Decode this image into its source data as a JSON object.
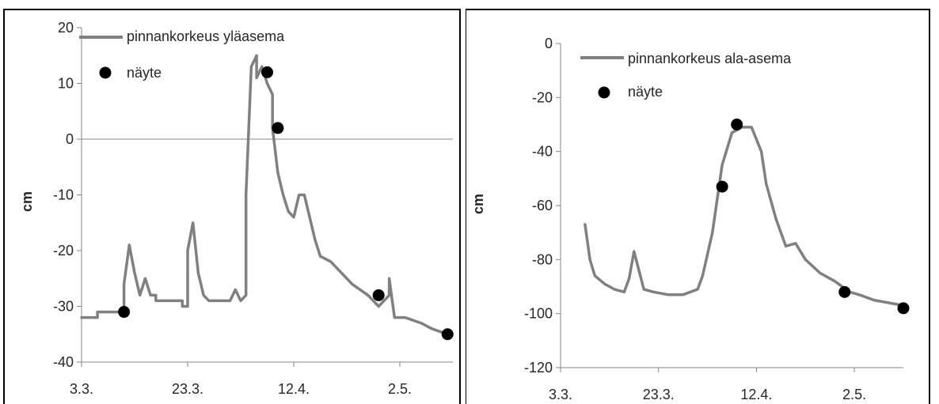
{
  "chart_data": [
    {
      "type": "line",
      "ylabel": "cm",
      "ylim": [
        -40,
        20
      ],
      "yticks": [
        "20",
        "10",
        "0",
        "-10",
        "-20",
        "-30",
        "-40"
      ],
      "xticks": [
        "3.3.",
        "23.3.",
        "12.4.",
        "2.5."
      ],
      "xlim": [
        "2024-03-03",
        "2024-05-12"
      ],
      "xtick_dates": [
        "2024-03-03",
        "2024-03-23",
        "2024-04-12",
        "2024-05-02"
      ],
      "grid": false,
      "zero_line": true,
      "legend_position": "top-left",
      "series": [
        {
          "name": "pinnankorkeus yläasema",
          "color": "#808080",
          "x": [
            "2024-03-03",
            "2024-03-06",
            "2024-03-06",
            "2024-03-09",
            "2024-03-11",
            "2024-03-11",
            "2024-03-12",
            "2024-03-13",
            "2024-03-14",
            "2024-03-15",
            "2024-03-16",
            "2024-03-17",
            "2024-03-17",
            "2024-03-18",
            "2024-03-20",
            "2024-03-22",
            "2024-03-22",
            "2024-03-23",
            "2024-03-23",
            "2024-03-24",
            "2024-03-25",
            "2024-03-26",
            "2024-03-27",
            "2024-03-29",
            "2024-03-31",
            "2024-04-01",
            "2024-04-02",
            "2024-04-03",
            "2024-04-03",
            "2024-04-04",
            "2024-04-05",
            "2024-04-05",
            "2024-04-06",
            "2024-04-07",
            "2024-04-08",
            "2024-04-08",
            "2024-04-09",
            "2024-04-10",
            "2024-04-11",
            "2024-04-12",
            "2024-04-13",
            "2024-04-14",
            "2024-04-15",
            "2024-04-16",
            "2024-04-17",
            "2024-04-19",
            "2024-04-21",
            "2024-04-23",
            "2024-04-26",
            "2024-04-28",
            "2024-04-30",
            "2024-04-30",
            "2024-05-01",
            "2024-05-03",
            "2024-05-06",
            "2024-05-08",
            "2024-05-11"
          ],
          "values": [
            -32,
            -32,
            -31,
            -31,
            -31,
            -26,
            -19,
            -24,
            -28,
            -25,
            -28,
            -28,
            -29,
            -29,
            -29,
            -29,
            -30,
            -30,
            -20,
            -15,
            -24,
            -28,
            -29,
            -29,
            -29,
            -27,
            -29,
            -28,
            -10,
            13,
            15,
            11,
            13,
            10,
            8,
            2,
            -6,
            -10,
            -13,
            -14,
            -10,
            -10,
            -14,
            -18,
            -21,
            -22,
            -24,
            -26,
            -28,
            -30,
            -28,
            -25,
            -32,
            -32,
            -33,
            -34,
            -35
          ]
        },
        {
          "name": "näyte",
          "color": "#000000",
          "x": [
            "2024-03-11",
            "2024-04-07",
            "2024-04-09",
            "2024-04-28",
            "2024-05-11"
          ],
          "values": [
            -31,
            12,
            2,
            -28,
            -35
          ]
        }
      ]
    },
    {
      "type": "line",
      "ylabel": "cm",
      "ylim": [
        -120,
        0
      ],
      "yticks": [
        "0",
        "-20",
        "-40",
        "-60",
        "-80",
        "-100",
        "-120"
      ],
      "xticks": [
        "3.3.",
        "23.3.",
        "12.4.",
        "2.5."
      ],
      "xlim": [
        "2024-03-03",
        "2024-05-12"
      ],
      "xtick_dates": [
        "2024-03-03",
        "2024-03-23",
        "2024-04-12",
        "2024-05-02"
      ],
      "grid": false,
      "zero_line": false,
      "legend_position": "top-left",
      "series": [
        {
          "name": "pinnankorkeus ala-asema",
          "color": "#808080",
          "x": [
            "2024-03-08",
            "2024-03-09",
            "2024-03-10",
            "2024-03-12",
            "2024-03-14",
            "2024-03-16",
            "2024-03-17",
            "2024-03-18",
            "2024-03-19",
            "2024-03-20",
            "2024-03-22",
            "2024-03-25",
            "2024-03-28",
            "2024-03-31",
            "2024-04-01",
            "2024-04-03",
            "2024-04-05",
            "2024-04-07",
            "2024-04-09",
            "2024-04-11",
            "2024-04-13",
            "2024-04-14",
            "2024-04-16",
            "2024-04-18",
            "2024-04-20",
            "2024-04-22",
            "2024-04-25",
            "2024-04-28",
            "2024-05-01",
            "2024-05-03",
            "2024-05-06",
            "2024-05-09",
            "2024-05-12"
          ],
          "values": [
            -67,
            -80,
            -86,
            -89,
            -91,
            -92,
            -87,
            -77,
            -84,
            -91,
            -92,
            -93,
            -93,
            -91,
            -86,
            -70,
            -45,
            -33,
            -31,
            -31,
            -40,
            -52,
            -65,
            -75,
            -74,
            -80,
            -85,
            -88,
            -92,
            -93,
            -95,
            -96,
            -97
          ]
        },
        {
          "name": "näyte",
          "color": "#000000",
          "x": [
            "2024-04-05",
            "2024-04-08",
            "2024-04-30",
            "2024-05-12"
          ],
          "values": [
            -53,
            -30,
            -92,
            -98
          ]
        }
      ]
    }
  ]
}
